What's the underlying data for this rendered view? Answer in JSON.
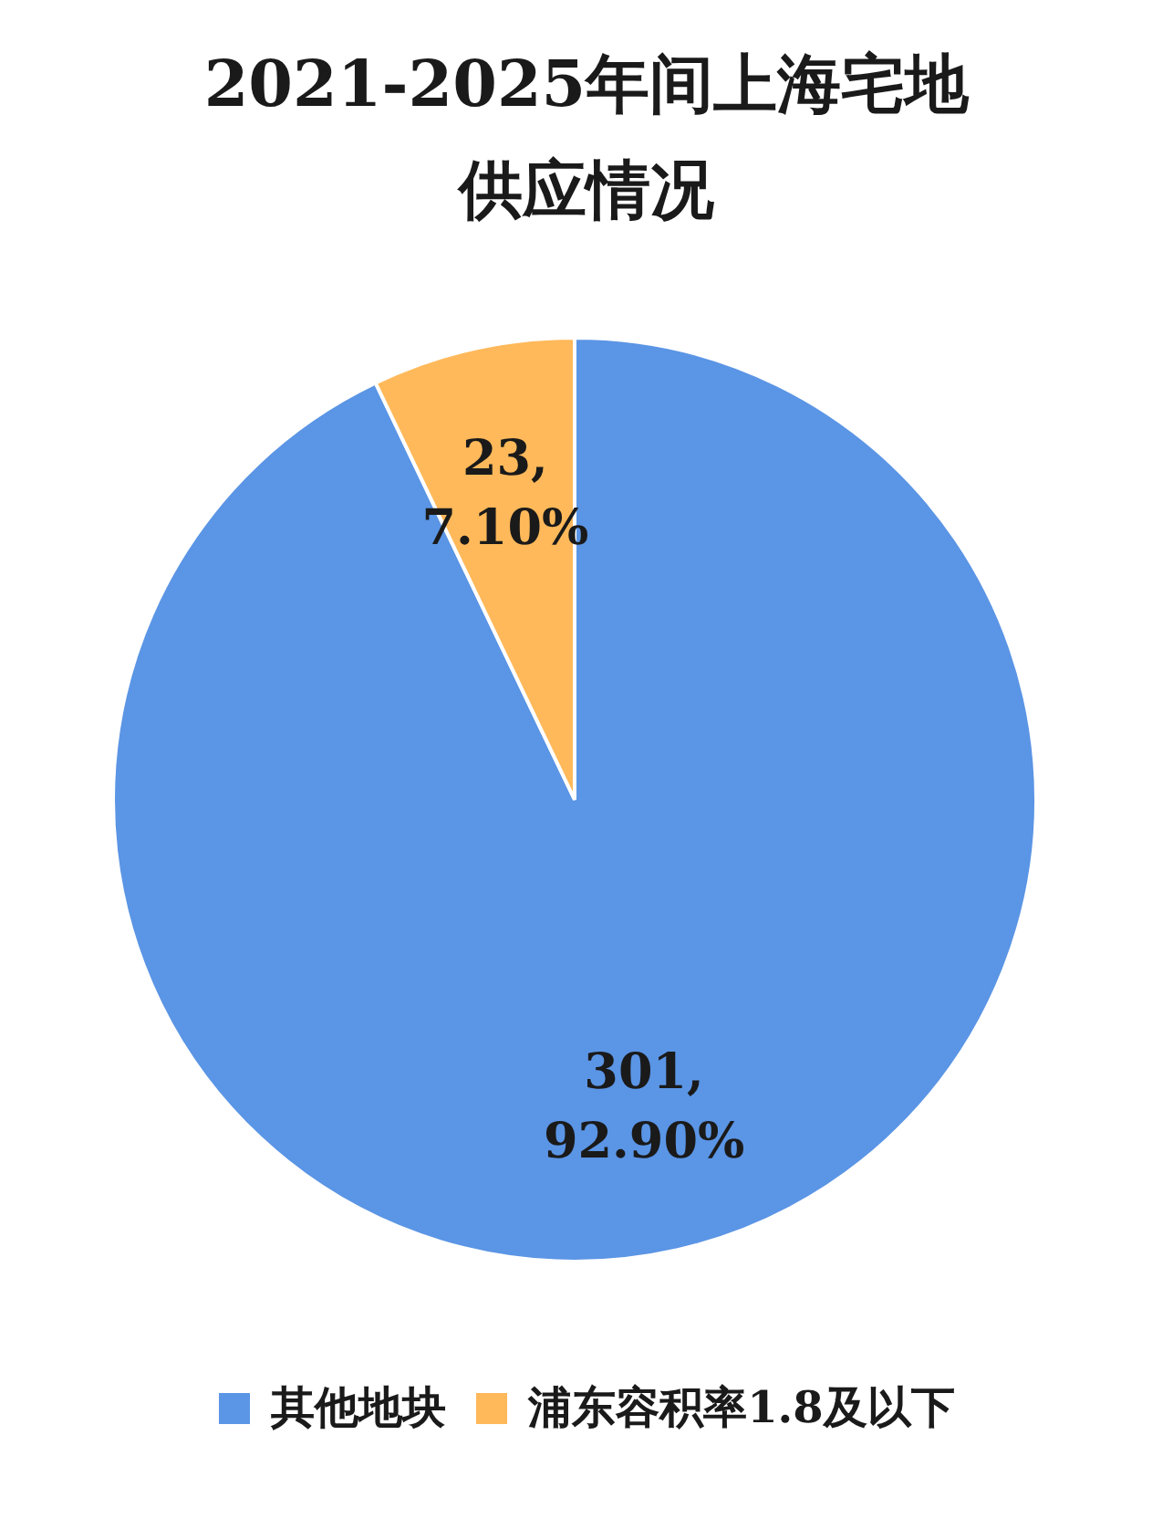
{
  "chart_data": {
    "type": "pie",
    "title": "2021-2025年间上海宅地供应情况",
    "categories": [
      "其他地块",
      "浦东容积率1.8及以下"
    ],
    "values": [
      301,
      23
    ],
    "colors": [
      "#5b95e5",
      "#ffb95a"
    ],
    "value_labels": [
      "301, 92.90%",
      "23, 7.10%"
    ],
    "legend": "bottom"
  }
}
